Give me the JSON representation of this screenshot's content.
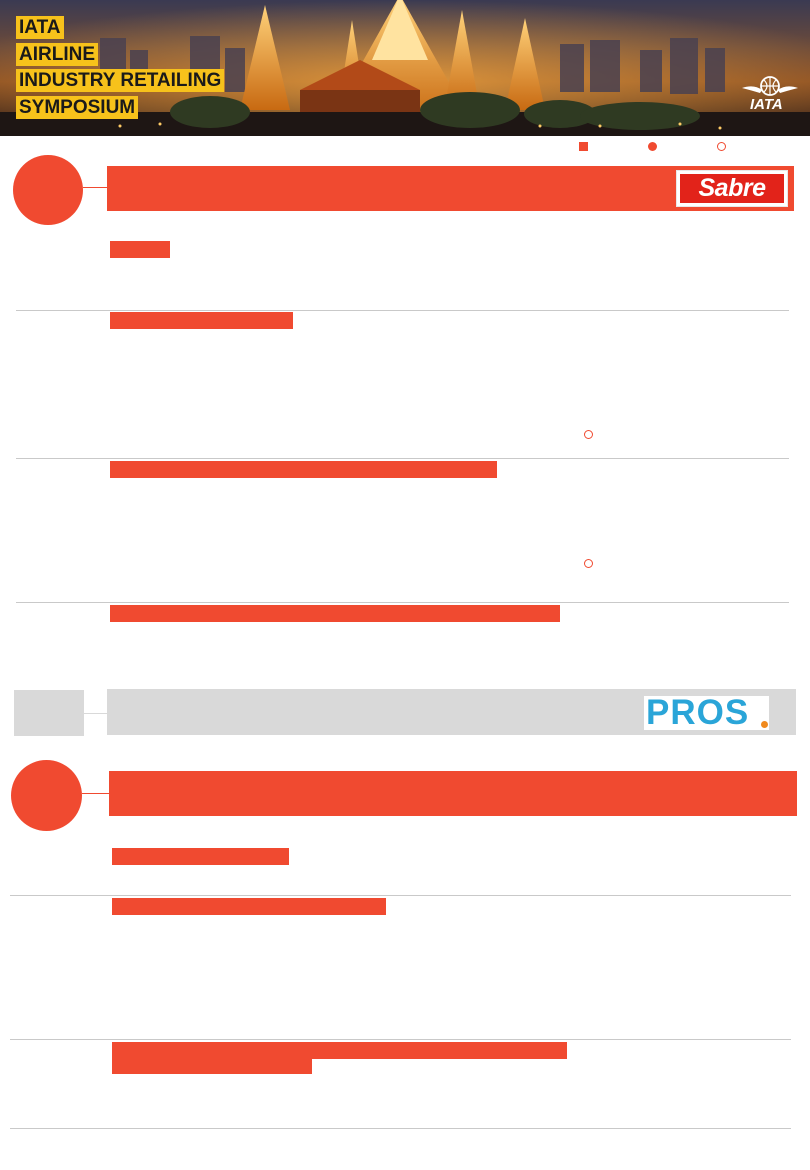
{
  "banner": {
    "title_lines": [
      "IATA",
      "AIRLINE",
      "INDUSTRY RETAILING",
      "SYMPOSIUM"
    ],
    "logo_text": "IATA"
  },
  "sponsors": {
    "sabre": "Sabre",
    "pros": "PROS"
  },
  "colors": {
    "accent": "#f04a30",
    "banner_title_bg": "#f7c21b",
    "divider": "#c9c9c9",
    "sponsor_bar_grey": "#d9d9d9",
    "sabre_red": "#e2231a",
    "pros_blue": "#2aa5d8"
  },
  "icons": [
    "globe-wings-icon",
    "square-legend-icon",
    "dot-legend-icon",
    "ring-legend-icon"
  ]
}
